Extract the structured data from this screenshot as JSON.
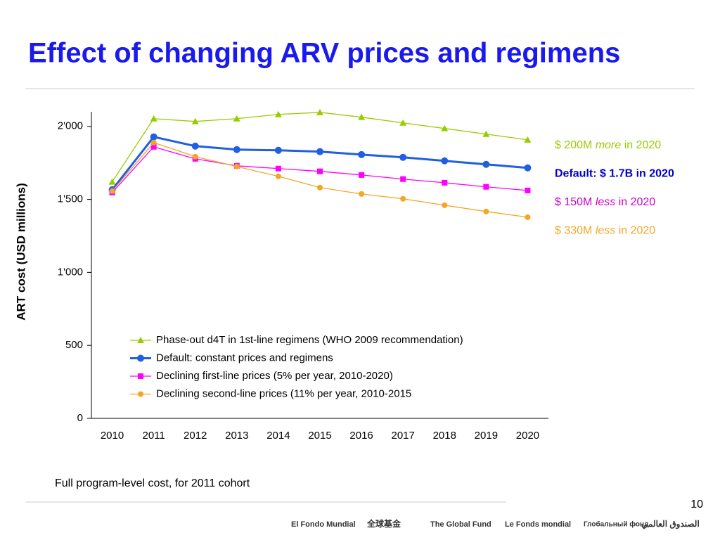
{
  "title": "Effect of changing ARV prices and regimens",
  "chart_data": {
    "type": "line",
    "ylabel": "ART cost (USD millions)",
    "categories": [
      "2010",
      "2011",
      "2012",
      "2013",
      "2014",
      "2015",
      "2016",
      "2017",
      "2018",
      "2019",
      "2020"
    ],
    "ylim": [
      0,
      2100
    ],
    "yticks": [
      0,
      500,
      {
        "value": 1000,
        "label": "1'000"
      },
      {
        "value": 1500,
        "label": "1'500"
      },
      {
        "value": 2000,
        "label": "2'000"
      }
    ],
    "legend": "lower-left",
    "series": [
      {
        "name": "Phase-out d4T in 1st-line regimens (WHO 2009 recommendation)",
        "color": "#99cc00",
        "marker": "triangle",
        "values": [
          1620,
          2053,
          2034,
          2053,
          2082,
          2096,
          2063,
          2024,
          1986,
          1947,
          1908
        ]
      },
      {
        "name": "Default: constant prices and regimens",
        "color": "#1f5fe0",
        "marker": "circle",
        "values": [
          1566,
          1928,
          1865,
          1841,
          1836,
          1827,
          1807,
          1788,
          1764,
          1740,
          1716
        ]
      },
      {
        "name": "Declining first-line prices (5% per year, 2010-2020)",
        "color": "#ff00ff",
        "marker": "square",
        "values": [
          1547,
          1860,
          1778,
          1730,
          1711,
          1692,
          1667,
          1639,
          1614,
          1586,
          1561
        ]
      },
      {
        "name": "Declining second-line prices (11% per year, 2010-2015",
        "color": "#f5a623",
        "marker": "circle",
        "values": [
          1557,
          1889,
          1793,
          1725,
          1658,
          1581,
          1537,
          1504,
          1460,
          1417,
          1378
        ]
      }
    ],
    "annotations": [
      {
        "parts": [
          "$ 200M ",
          "more",
          " in 2020"
        ],
        "color": "#99cc00"
      },
      {
        "parts": [
          "Default: $ 1.7B in 2020"
        ],
        "color": "#0000cc",
        "bold": true
      },
      {
        "parts": [
          "$ 150M ",
          "less",
          " in 2020"
        ],
        "color": "#cc00cc"
      },
      {
        "parts": [
          "$ 330M ",
          "less",
          " in 2020"
        ],
        "color": "#f5a623"
      }
    ]
  },
  "footnote": "Full program-level cost, for 2011 cohort",
  "page_number": "10",
  "logos": [
    "El Fondo Mundial",
    "全球基金",
    "The Global Fund",
    "Le Fonds mondial",
    "Глобальный фонд",
    "الصندوق العالمي"
  ]
}
